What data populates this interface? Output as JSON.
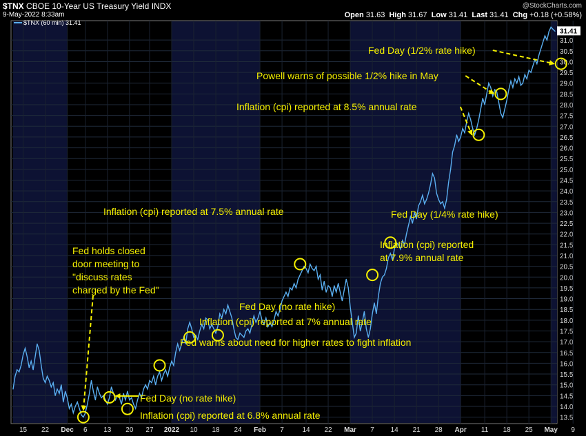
{
  "header": {
    "symbol": "$TNX",
    "name": "CBOE 10-Year US Treasury Yield",
    "exchange": "INDX",
    "date": "9-May-2022 8:33am",
    "brand": "@StockCharts.com",
    "open_label": "Open",
    "open": "31.63",
    "high_label": "High",
    "high": "31.67",
    "low_label": "Low",
    "low": "31.41",
    "last_label": "Last",
    "last": "31.41",
    "chg_label": "Chg",
    "chg": "+0.18 (+0.58%)"
  },
  "colors": {
    "line": "#5aaef0",
    "annotation": "#f5f000",
    "bg": "#000000",
    "band": "#0d1233"
  },
  "chart_data": {
    "type": "line",
    "legend": "$TNX (60 min) 31.41",
    "last_value_label": "31.41",
    "ylim": [
      13.2,
      31.9
    ],
    "y_ticks": [
      13.5,
      14.0,
      14.5,
      15.0,
      15.5,
      16.0,
      16.5,
      17.0,
      17.5,
      18.0,
      18.5,
      19.0,
      19.5,
      20.0,
      20.5,
      21.0,
      21.5,
      22.0,
      22.5,
      23.0,
      23.5,
      24.0,
      24.5,
      25.0,
      25.5,
      26.0,
      26.5,
      27.0,
      27.5,
      28.0,
      28.5,
      29.0,
      29.5,
      30.0,
      30.5,
      31.0
    ],
    "x_ticks": [
      {
        "i": 5,
        "label": "15"
      },
      {
        "i": 16,
        "label": "22"
      },
      {
        "i": 27,
        "label": "Dec"
      },
      {
        "i": 36,
        "label": "6"
      },
      {
        "i": 47,
        "label": "13"
      },
      {
        "i": 58,
        "label": "20"
      },
      {
        "i": 68,
        "label": "27"
      },
      {
        "i": 79,
        "label": "2022"
      },
      {
        "i": 90,
        "label": "10"
      },
      {
        "i": 101,
        "label": "18"
      },
      {
        "i": 112,
        "label": "24"
      },
      {
        "i": 123,
        "label": "Feb"
      },
      {
        "i": 134,
        "label": "7"
      },
      {
        "i": 146,
        "label": "14"
      },
      {
        "i": 157,
        "label": "22"
      },
      {
        "i": 168,
        "label": "Mar"
      },
      {
        "i": 179,
        "label": "7"
      },
      {
        "i": 190,
        "label": "14"
      },
      {
        "i": 201,
        "label": "21"
      },
      {
        "i": 212,
        "label": "28"
      },
      {
        "i": 223,
        "label": "Apr"
      },
      {
        "i": 235,
        "label": "11"
      },
      {
        "i": 246,
        "label": "18"
      },
      {
        "i": 257,
        "label": "25"
      },
      {
        "i": 268,
        "label": "May"
      },
      {
        "i": 279,
        "label": "9"
      }
    ],
    "month_bands": [
      [
        0,
        27
      ],
      [
        79,
        123
      ],
      [
        168,
        223
      ],
      [
        268,
        285
      ]
    ],
    "values": [
      14.8,
      15.4,
      15.7,
      15.6,
      15.9,
      16.4,
      16.7,
      16.3,
      15.8,
      16.1,
      15.7,
      16.3,
      16.9,
      16.6,
      15.9,
      15.3,
      15.1,
      15.4,
      15.2,
      14.9,
      15.1,
      14.5,
      14.8,
      14.6,
      15.0,
      14.2,
      14.7,
      14.4,
      13.9,
      14.1,
      13.7,
      14.0,
      14.2,
      13.9,
      13.6,
      13.5,
      13.7,
      14.1,
      14.6,
      15.2,
      14.7,
      14.3,
      14.9,
      14.6,
      14.4,
      14.5,
      14.3,
      14.1,
      14.4,
      14.9,
      14.6,
      14.3,
      14.5,
      14.4,
      14.1,
      14.6,
      14.3,
      14.7,
      14.3,
      14.4,
      14.1,
      13.9,
      14.3,
      14.6,
      14.4,
      14.8,
      15.0,
      14.8,
      15.2,
      15.1,
      15.4,
      15.0,
      15.4,
      15.6,
      15.2,
      15.5,
      15.7,
      15.4,
      15.8,
      16.1,
      15.9,
      16.5,
      16.9,
      16.6,
      16.9,
      17.2,
      16.9,
      17.6,
      17.9,
      17.6,
      17.2,
      17.3,
      17.1,
      17.5,
      17.8,
      17.6,
      18.1,
      18.0,
      17.6,
      17.8,
      17.6,
      17.4,
      17.7,
      18.3,
      18.1,
      18.5,
      18.3,
      18.7,
      18.4,
      18.1,
      17.6,
      17.2,
      17.1,
      17.4,
      17.3,
      17.2,
      17.5,
      17.6,
      17.4,
      17.8,
      18.2,
      17.9,
      18.1,
      18.4,
      18.0,
      17.8,
      18.1,
      17.7,
      17.9,
      17.7,
      18.0,
      18.4,
      18.2,
      18.5,
      18.9,
      19.1,
      19.3,
      19.1,
      19.5,
      19.4,
      19.7,
      19.5,
      19.9,
      20.1,
      20.3,
      20.5,
      20.4,
      20.2,
      20.6,
      20.4,
      20.3,
      20.5,
      19.9,
      20.1,
      19.4,
      19.8,
      19.3,
      19.6,
      19.5,
      19.1,
      19.6,
      19.3,
      19.7,
      19.3,
      18.9,
      19.4,
      19.9,
      19.5,
      18.6,
      17.9,
      17.2,
      17.4,
      18.2,
      17.5,
      17.9,
      18.4,
      17.6,
      17.2,
      17.6,
      18.3,
      18.8,
      18.3,
      19.1,
      19.7,
      20.0,
      20.1,
      20.4,
      20.9,
      21.1,
      20.8,
      21.3,
      21.6,
      21.5,
      21.3,
      21.7,
      21.5,
      22.0,
      22.4,
      22.8,
      22.5,
      23.0,
      22.7,
      23.3,
      23.5,
      23.8,
      23.4,
      23.6,
      23.9,
      24.3,
      24.8,
      24.6,
      23.9,
      23.6,
      23.4,
      23.5,
      23.2,
      23.6,
      24.4,
      25.0,
      25.8,
      26.1,
      26.6,
      26.3,
      26.5,
      26.9,
      26.7,
      27.2,
      27.6,
      27.3,
      26.9,
      26.6,
      26.9,
      27.3,
      27.8,
      28.3,
      28.0,
      28.5,
      29.0,
      28.8,
      28.4,
      28.7,
      28.6,
      28.1,
      27.6,
      27.4,
      27.8,
      28.2,
      28.7,
      29.1,
      28.8,
      29.2,
      29.0,
      29.3,
      28.9,
      29.0,
      29.4,
      29.2,
      29.6,
      29.5,
      29.8,
      30.1,
      29.9,
      30.3,
      30.6,
      30.9,
      31.2,
      31.0,
      31.4,
      31.6,
      31.5,
      31.41
    ],
    "annotations": [
      {
        "text": "Fed holds closed\ndoor meeting to\n\"discuss rates\ncharged by the Fed\"",
        "tx": 105,
        "ty": 369,
        "lines": 4,
        "circle": [
          35,
          13.5
        ],
        "arrow": "dashed-down"
      },
      {
        "text": "Fed Day (no rate hike)",
        "tx": 203,
        "ty": 583,
        "circle": [
          48,
          14.42
        ],
        "arrow": "solid-to-circle"
      },
      {
        "text": "Inflation (cpi) reported at 6.8% annual rate",
        "tx": 203,
        "ty": 608,
        "circle": [
          57,
          13.88
        ]
      },
      {
        "text": "Fed warns about need for higher rates to fight inflation",
        "tx": 261,
        "ty": 502,
        "circle": [
          73,
          15.9
        ]
      },
      {
        "text": "Inflation (cpi) reported at 7% annual rate",
        "tx": 289,
        "ty": 472,
        "circle": [
          88,
          17.2
        ]
      },
      {
        "text": "Fed Day (no rate hike)",
        "tx": 347,
        "ty": 450,
        "circle": [
          102,
          17.3
        ]
      },
      {
        "text": "Inflation (cpi) reported at 7.5% annual rate",
        "tx": 150,
        "ty": 312,
        "circle": [
          143,
          20.6
        ]
      },
      {
        "text": "Inflation (cpi) reported\nat 7.9% annual rate",
        "tx": 551,
        "ty": 360,
        "lines": 2,
        "circle": [
          179,
          20.1
        ]
      },
      {
        "text": "Fed Day (1/4% rate hike)",
        "tx": 567,
        "ty": 316,
        "circle": [
          188,
          21.6
        ]
      },
      {
        "text": "Inflation (cpi) reported at 8.5% annual rate",
        "tx": 343,
        "ty": 160,
        "circle": [
          232,
          26.6
        ],
        "arrow": "dashed-right"
      },
      {
        "text": "Powell warns of possible 1/2% hike in May",
        "tx": 372,
        "ty": 115,
        "circle": [
          243,
          28.5
        ],
        "arrow": "dashed-right"
      },
      {
        "text": "Fed Day (1/2% rate hike)",
        "tx": 534,
        "ty": 78,
        "circle": [
          273,
          29.9
        ],
        "arrow": "dashed-right"
      }
    ]
  }
}
